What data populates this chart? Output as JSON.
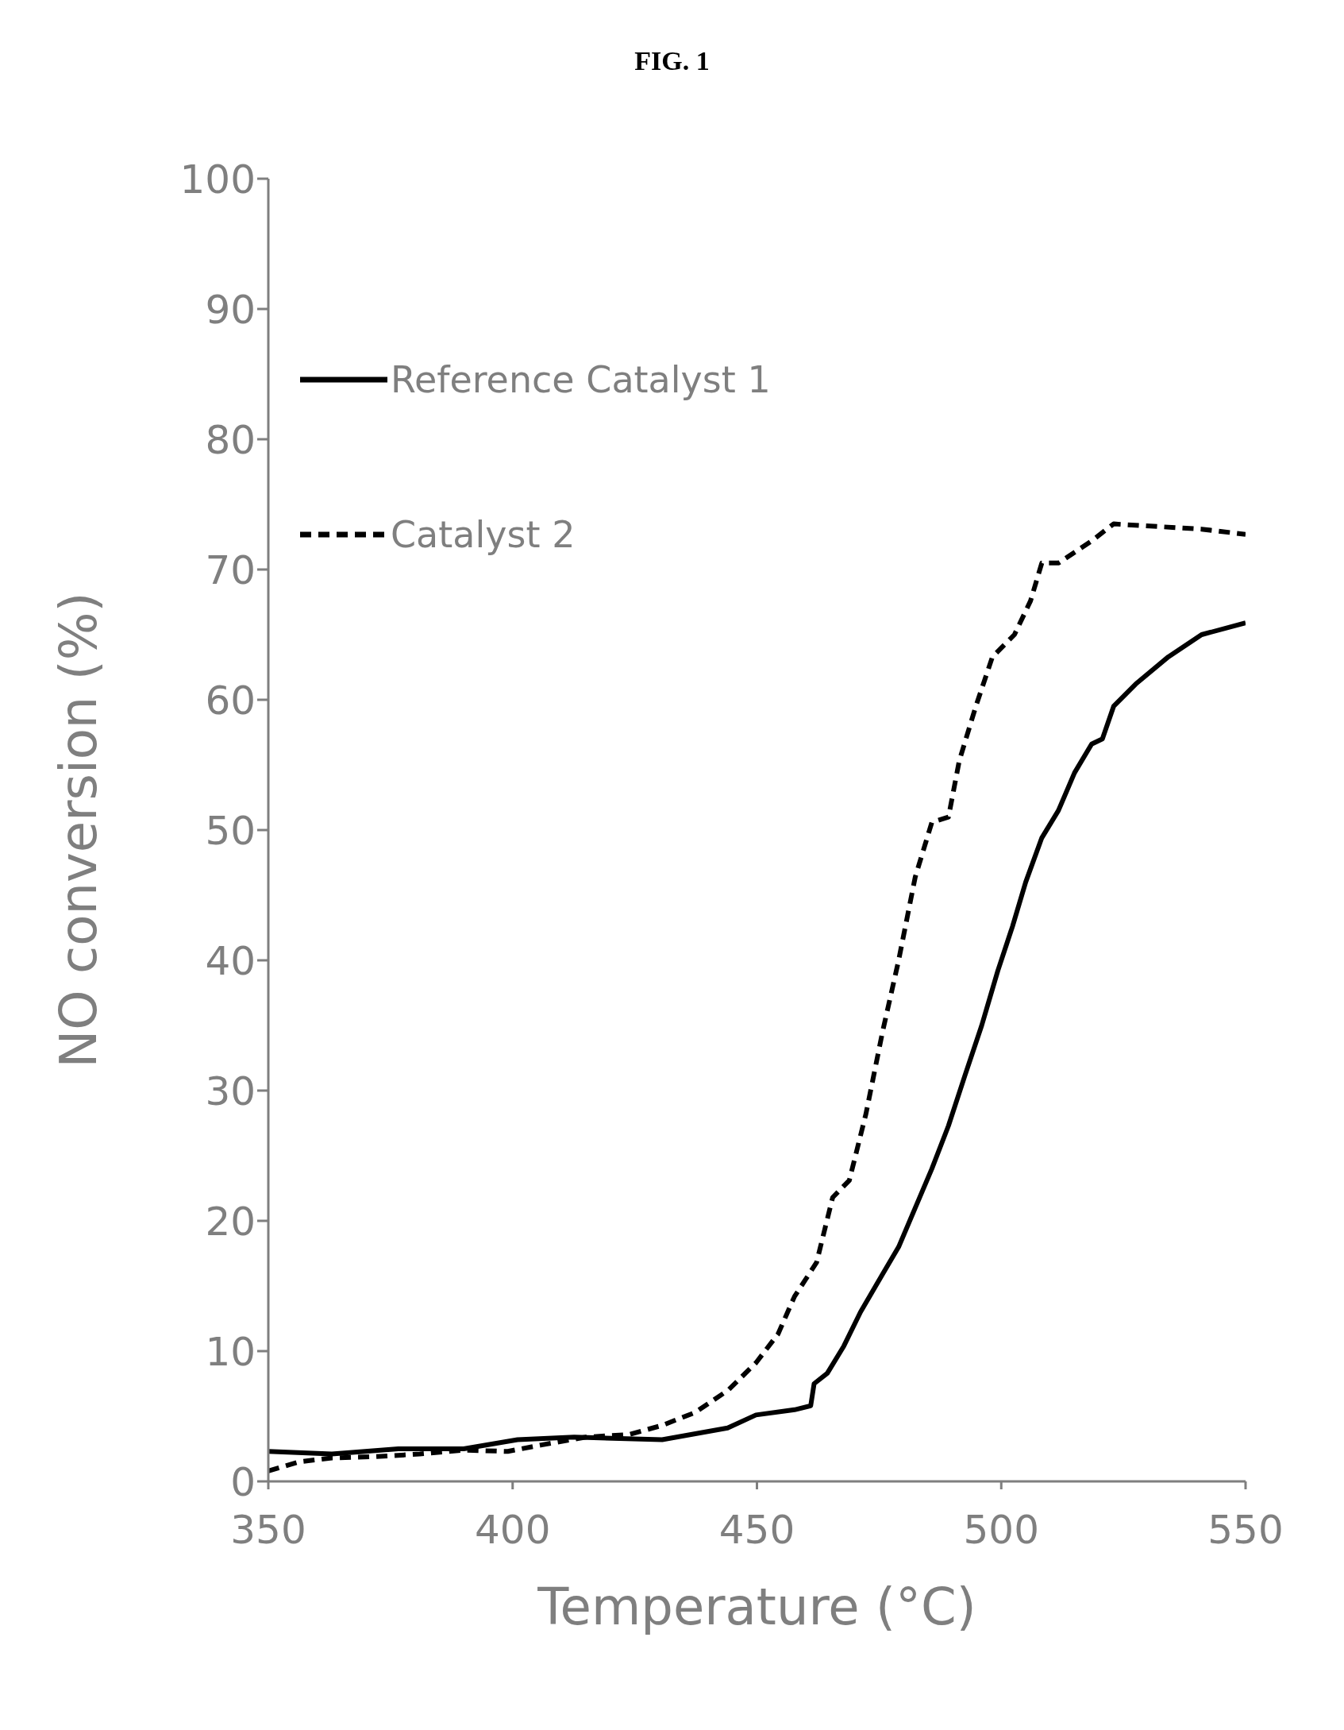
{
  "chart_data": {
    "type": "line",
    "title": "FIG. 1",
    "xlabel": "Temperature (°C)",
    "ylabel": "NO conversion (%)",
    "xlim": [
      350,
      550
    ],
    "xticks": [
      350,
      400,
      450,
      500,
      550
    ],
    "ylim": [
      0,
      100
    ],
    "yticks": [
      0,
      10,
      20,
      30,
      40,
      50,
      60,
      70,
      80,
      90,
      100
    ],
    "grid": false,
    "legend": "top left",
    "marker": "none",
    "series": [
      {
        "name": "Reference Catalyst 1",
        "color": "#000000",
        "line_style": "solid",
        "x": [
          350,
          363,
          376.6,
          390,
          401,
          412.6,
          430.6,
          444,
          449.8,
          457.7,
          461,
          461.7,
          464.4,
          467.8,
          471.2,
          475.7,
          479,
          482.4,
          485.8,
          489.2,
          492.6,
          496,
          499.3,
          502.3,
          505,
          508.3,
          511.7,
          515,
          518.5,
          520.7,
          523,
          527.5,
          534.2,
          541,
          550
        ],
        "values": [
          2.3,
          2.1,
          2.5,
          2.5,
          3.2,
          3.4,
          3.2,
          4.1,
          5.1,
          5.5,
          5.8,
          7.5,
          8.3,
          10.4,
          13,
          15.9,
          18,
          21,
          24,
          27.3,
          31.2,
          35,
          39.2,
          42.6,
          46,
          49.4,
          51.5,
          54.4,
          56.6,
          57,
          59.5,
          61.2,
          63.3,
          65,
          65.9
        ]
      },
      {
        "name": "Catalyst 2",
        "color": "#000000",
        "line_style": "dashed",
        "x": [
          350,
          356.3,
          363,
          372,
          381,
          390,
          399,
          405.9,
          415,
          423.9,
          430.6,
          437.4,
          444.1,
          449.8,
          454.3,
          457.7,
          462.2,
          465.5,
          468.9,
          472.3,
          475.7,
          479,
          482.4,
          485.8,
          489.2,
          491.4,
          494.8,
          498.2,
          502.7,
          506,
          508.3,
          511.7,
          518.5,
          523,
          532,
          541,
          550
        ],
        "values": [
          0.8,
          1.5,
          1.8,
          1.9,
          2.1,
          2.4,
          2.3,
          2.8,
          3.4,
          3.6,
          4.3,
          5.3,
          7,
          9.1,
          11.3,
          14.2,
          16.8,
          21.8,
          23.1,
          28.2,
          34.5,
          40,
          46.4,
          50.6,
          51,
          55.3,
          59.5,
          63.3,
          65,
          67.6,
          70.5,
          70.5,
          72.2,
          73.5,
          73.3,
          73.1,
          72.7
        ]
      }
    ]
  }
}
